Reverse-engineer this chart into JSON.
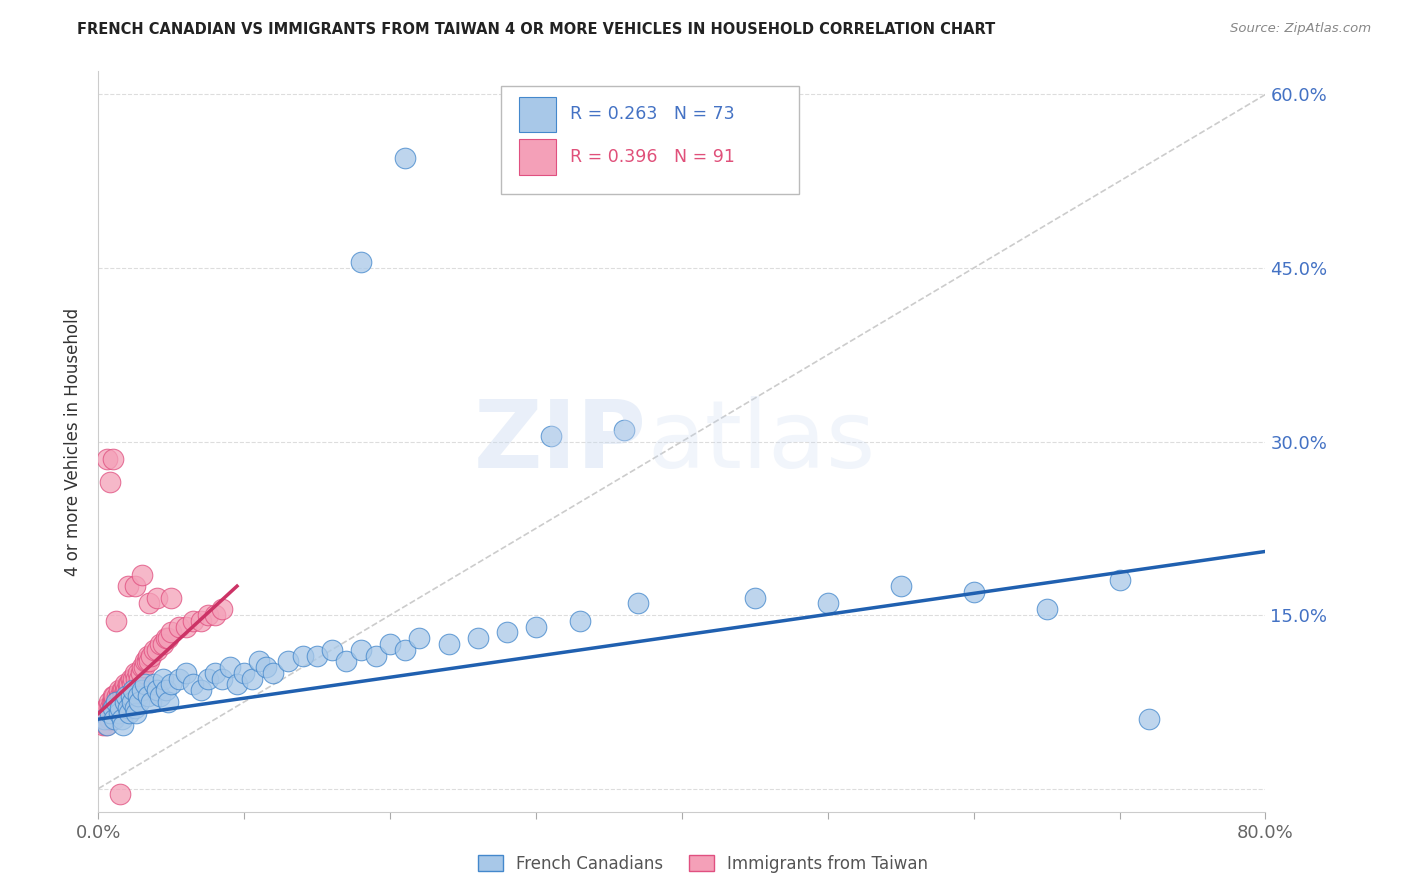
{
  "title": "FRENCH CANADIAN VS IMMIGRANTS FROM TAIWAN 4 OR MORE VEHICLES IN HOUSEHOLD CORRELATION CHART",
  "source": "Source: ZipAtlas.com",
  "ylabel": "4 or more Vehicles in Household",
  "xmin": 0.0,
  "xmax": 0.8,
  "ymin": -0.02,
  "ymax": 0.62,
  "ytick_positions": [
    0.0,
    0.15,
    0.3,
    0.45,
    0.6
  ],
  "ytick_labels": [
    "",
    "15.0%",
    "30.0%",
    "45.0%",
    "60.0%"
  ],
  "xtick_positions": [
    0.0,
    0.1,
    0.2,
    0.3,
    0.4,
    0.5,
    0.6,
    0.7,
    0.8
  ],
  "xtick_labels": [
    "0.0%",
    "",
    "",
    "",
    "",
    "",
    "",
    "",
    "80.0%"
  ],
  "blue_fill": "#a8c8e8",
  "blue_edge": "#4488cc",
  "pink_fill": "#f4a0b8",
  "pink_edge": "#e05080",
  "blue_line_color": "#2060b0",
  "pink_line_color": "#cc3366",
  "ref_line_color": "#cccccc",
  "legend_label_blue": "French Canadians",
  "legend_label_pink": "Immigrants from Taiwan",
  "watermark": "ZIPatlas",
  "blue_r": 0.263,
  "blue_n": 73,
  "pink_r": 0.396,
  "pink_n": 91,
  "blue_line_x0": 0.0,
  "blue_line_x1": 0.8,
  "blue_line_y0": 0.06,
  "blue_line_y1": 0.205,
  "pink_line_x0": 0.0,
  "pink_line_x1": 0.095,
  "pink_line_y0": 0.065,
  "pink_line_y1": 0.175,
  "blue_scatter_x": [
    0.004,
    0.006,
    0.008,
    0.01,
    0.011,
    0.012,
    0.014,
    0.015,
    0.016,
    0.017,
    0.018,
    0.019,
    0.02,
    0.021,
    0.022,
    0.023,
    0.024,
    0.025,
    0.026,
    0.027,
    0.028,
    0.03,
    0.032,
    0.034,
    0.036,
    0.038,
    0.04,
    0.042,
    0.044,
    0.046,
    0.048,
    0.05,
    0.055,
    0.06,
    0.065,
    0.07,
    0.075,
    0.08,
    0.085,
    0.09,
    0.095,
    0.1,
    0.105,
    0.11,
    0.115,
    0.12,
    0.13,
    0.14,
    0.15,
    0.16,
    0.17,
    0.18,
    0.19,
    0.2,
    0.21,
    0.22,
    0.24,
    0.26,
    0.28,
    0.3,
    0.33,
    0.37,
    0.21,
    0.18,
    0.31,
    0.36,
    0.45,
    0.5,
    0.55,
    0.6,
    0.65,
    0.7,
    0.72
  ],
  "blue_scatter_y": [
    0.06,
    0.055,
    0.065,
    0.07,
    0.06,
    0.075,
    0.065,
    0.07,
    0.06,
    0.055,
    0.075,
    0.08,
    0.07,
    0.065,
    0.08,
    0.075,
    0.085,
    0.07,
    0.065,
    0.08,
    0.075,
    0.085,
    0.09,
    0.08,
    0.075,
    0.09,
    0.085,
    0.08,
    0.095,
    0.085,
    0.075,
    0.09,
    0.095,
    0.1,
    0.09,
    0.085,
    0.095,
    0.1,
    0.095,
    0.105,
    0.09,
    0.1,
    0.095,
    0.11,
    0.105,
    0.1,
    0.11,
    0.115,
    0.115,
    0.12,
    0.11,
    0.12,
    0.115,
    0.125,
    0.12,
    0.13,
    0.125,
    0.13,
    0.135,
    0.14,
    0.145,
    0.16,
    0.545,
    0.455,
    0.305,
    0.31,
    0.165,
    0.16,
    0.175,
    0.17,
    0.155,
    0.18,
    0.06
  ],
  "pink_scatter_x": [
    0.002,
    0.003,
    0.004,
    0.005,
    0.005,
    0.005,
    0.006,
    0.006,
    0.007,
    0.007,
    0.007,
    0.008,
    0.008,
    0.008,
    0.009,
    0.009,
    0.009,
    0.01,
    0.01,
    0.01,
    0.01,
    0.01,
    0.011,
    0.011,
    0.011,
    0.012,
    0.012,
    0.012,
    0.013,
    0.013,
    0.013,
    0.014,
    0.014,
    0.014,
    0.015,
    0.015,
    0.015,
    0.016,
    0.016,
    0.016,
    0.017,
    0.017,
    0.018,
    0.018,
    0.018,
    0.019,
    0.019,
    0.02,
    0.02,
    0.02,
    0.021,
    0.022,
    0.023,
    0.024,
    0.025,
    0.026,
    0.027,
    0.028,
    0.029,
    0.03,
    0.031,
    0.032,
    0.033,
    0.034,
    0.035,
    0.036,
    0.038,
    0.04,
    0.042,
    0.044,
    0.046,
    0.048,
    0.05,
    0.055,
    0.06,
    0.065,
    0.07,
    0.075,
    0.08,
    0.085,
    0.006,
    0.008,
    0.01,
    0.012,
    0.02,
    0.025,
    0.03,
    0.035,
    0.04,
    0.05,
    0.015
  ],
  "pink_scatter_y": [
    0.06,
    0.055,
    0.065,
    0.06,
    0.07,
    0.055,
    0.065,
    0.07,
    0.06,
    0.065,
    0.075,
    0.06,
    0.07,
    0.065,
    0.075,
    0.065,
    0.07,
    0.06,
    0.075,
    0.065,
    0.07,
    0.08,
    0.075,
    0.065,
    0.08,
    0.07,
    0.075,
    0.065,
    0.08,
    0.075,
    0.07,
    0.08,
    0.075,
    0.085,
    0.075,
    0.08,
    0.07,
    0.085,
    0.08,
    0.075,
    0.085,
    0.08,
    0.085,
    0.08,
    0.09,
    0.08,
    0.085,
    0.09,
    0.085,
    0.08,
    0.09,
    0.095,
    0.09,
    0.095,
    0.1,
    0.095,
    0.1,
    0.095,
    0.1,
    0.105,
    0.105,
    0.11,
    0.11,
    0.115,
    0.11,
    0.115,
    0.12,
    0.12,
    0.125,
    0.125,
    0.13,
    0.13,
    0.135,
    0.14,
    0.14,
    0.145,
    0.145,
    0.15,
    0.15,
    0.155,
    0.285,
    0.265,
    0.285,
    0.145,
    0.175,
    0.175,
    0.185,
    0.16,
    0.165,
    0.165,
    -0.005
  ]
}
